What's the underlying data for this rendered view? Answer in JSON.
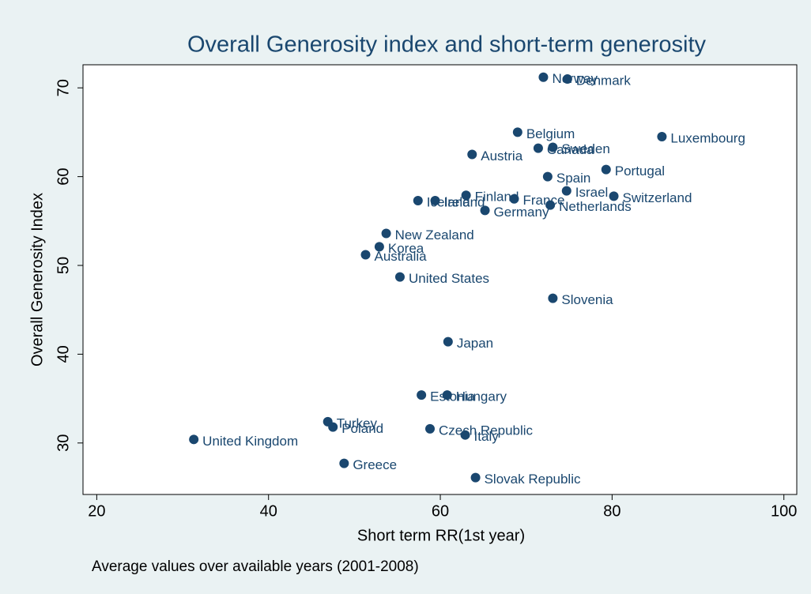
{
  "chart_data": {
    "type": "scatter",
    "title": "Overall Generosity index and short-term generosity",
    "xlabel": "Short term RR(1st year)",
    "ylabel": "Overall Generosity Index",
    "note": "Average values over available years (2001-2008)",
    "color": "#1a476f",
    "labels": [
      "Norway",
      "Denmark",
      "Belgium",
      "Luxembourg",
      "Canada",
      "Sweden",
      "Austria",
      "Portugal",
      "Spain",
      "Israel",
      "Switzerland",
      "Finland",
      "France",
      "Iceland",
      "Ireland",
      "Netherlands",
      "Germany",
      "New Zealand",
      "Korea",
      "Australia",
      "United States",
      "Slovenia",
      "Japan",
      "Estonia",
      "Hungary",
      "Turkey",
      "Poland",
      "Czech Republic",
      "Italy",
      "United Kingdom",
      "Greece",
      "Slovak Republic"
    ],
    "x": [
      72.0,
      74.8,
      69.0,
      85.8,
      71.4,
      73.1,
      63.7,
      79.3,
      72.5,
      74.7,
      80.2,
      63.0,
      68.6,
      57.4,
      59.4,
      72.8,
      65.2,
      53.7,
      52.9,
      51.3,
      55.3,
      73.1,
      60.9,
      57.8,
      60.8,
      46.9,
      47.5,
      58.8,
      62.9,
      31.3,
      48.8,
      64.1
    ],
    "y": [
      71.2,
      71.0,
      65.0,
      64.5,
      63.2,
      63.3,
      62.5,
      60.8,
      60.0,
      58.4,
      57.8,
      57.9,
      57.5,
      57.3,
      57.3,
      56.8,
      56.2,
      53.6,
      52.1,
      51.2,
      48.7,
      46.3,
      41.4,
      35.4,
      35.4,
      32.4,
      31.8,
      31.6,
      30.9,
      30.4,
      27.7,
      26.1
    ],
    "xlim": [
      18.4,
      101.5
    ],
    "ylim": [
      24.2,
      72.6
    ],
    "xticks": [
      20,
      40,
      60,
      80,
      100
    ],
    "yticks": [
      30,
      40,
      50,
      60,
      70
    ]
  }
}
